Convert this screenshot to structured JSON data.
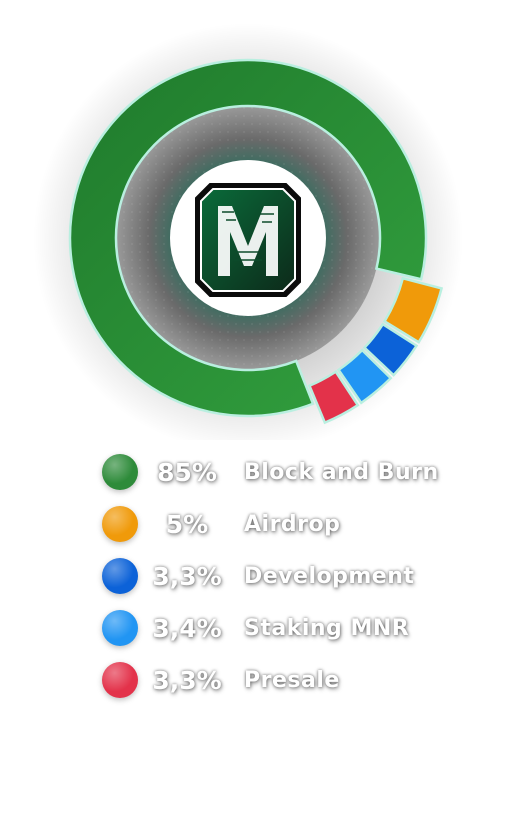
{
  "chart_data": {
    "type": "pie",
    "title": "",
    "center_logo": "M",
    "slices": [
      {
        "label": "Block and Burn",
        "value": 85,
        "value_label": "85%",
        "color": "#2e8b3a"
      },
      {
        "label": "Airdrop",
        "value": 5,
        "value_label": "5%",
        "color": "#f09a0a"
      },
      {
        "label": "Development",
        "value": 3.3,
        "value_label": "3,3%",
        "color": "#0c62d8"
      },
      {
        "label": "Staking MNR",
        "value": 3.4,
        "value_label": "3,4%",
        "color": "#2195f3"
      },
      {
        "label": "Presale",
        "value": 3.3,
        "value_label": "3,3%",
        "color": "#e3324a"
      }
    ],
    "legend_position": "bottom"
  }
}
